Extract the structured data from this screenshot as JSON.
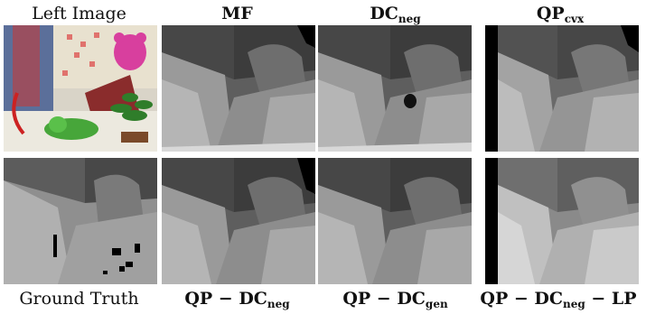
{
  "header": {
    "col1": "Left Image",
    "col2": "MF",
    "col3": {
      "base": "DC",
      "sub": "neg"
    },
    "col4": {
      "base": "QP",
      "sub": "cvx"
    }
  },
  "footer": {
    "col1": "Ground Truth",
    "col2": {
      "base": "QP − DC",
      "sub": "neg"
    },
    "col3": {
      "base": "QP − DC",
      "sub": "gen"
    },
    "col4": {
      "base": "QP − DC",
      "sub": "neg",
      "tail": " − LP"
    }
  }
}
